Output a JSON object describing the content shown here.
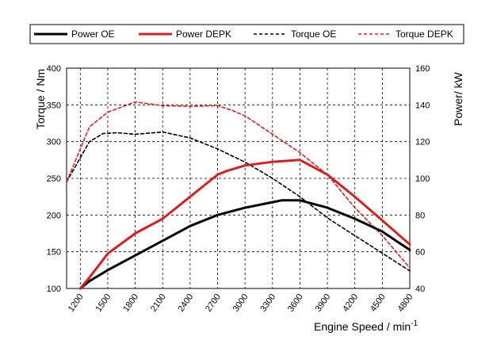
{
  "chart_data": {
    "type": "line",
    "x": [
      1200,
      1500,
      1800,
      2100,
      2400,
      2700,
      3000,
      3300,
      3600,
      3900,
      4200,
      4500,
      4800
    ],
    "xlabel": "Engine Speed / min",
    "xlabel_sup": "-1",
    "ylabel": "Torque / Nm",
    "y2label": "Power/ kW",
    "ylim": [
      100,
      400
    ],
    "y2lim": [
      40,
      160
    ],
    "xlim": [
      1050,
      4800
    ],
    "yticks": [
      100,
      150,
      200,
      250,
      300,
      350,
      400
    ],
    "y2ticks": [
      40,
      60,
      80,
      100,
      120,
      140,
      160
    ],
    "xtick_labels": [
      "1200",
      "1500",
      "1800",
      "2100",
      "2400",
      "2700",
      "3000",
      "3300",
      "3600",
      "3900",
      "4200",
      "4500",
      "4800"
    ],
    "grid": true,
    "legend_position": "top",
    "series": [
      {
        "name": "Power OE",
        "axis": "right",
        "color": "#000000",
        "style": "solid",
        "points": [
          [
            1200,
            40
          ],
          [
            1300,
            44
          ],
          [
            1500,
            50
          ],
          [
            1800,
            58
          ],
          [
            2100,
            66
          ],
          [
            2400,
            74
          ],
          [
            2700,
            80
          ],
          [
            3000,
            84
          ],
          [
            3300,
            87
          ],
          [
            3400,
            88
          ],
          [
            3600,
            88
          ],
          [
            3900,
            84
          ],
          [
            4200,
            78
          ],
          [
            4500,
            71
          ],
          [
            4800,
            61
          ]
        ]
      },
      {
        "name": "Power DEPK",
        "axis": "right",
        "color": "#d62020",
        "style": "solid",
        "points": [
          [
            1200,
            40
          ],
          [
            1300,
            46
          ],
          [
            1500,
            59
          ],
          [
            1800,
            70
          ],
          [
            2100,
            78
          ],
          [
            2400,
            90
          ],
          [
            2700,
            102
          ],
          [
            2800,
            104
          ],
          [
            3000,
            107
          ],
          [
            3300,
            109
          ],
          [
            3600,
            110
          ],
          [
            3900,
            102
          ],
          [
            4200,
            90
          ],
          [
            4500,
            77
          ],
          [
            4800,
            64
          ]
        ]
      },
      {
        "name": "Torque OE",
        "axis": "left",
        "color": "#000000",
        "style": "dashed",
        "points": [
          [
            1050,
            245
          ],
          [
            1300,
            300
          ],
          [
            1450,
            311
          ],
          [
            1600,
            312
          ],
          [
            1800,
            310
          ],
          [
            2100,
            313
          ],
          [
            2400,
            305
          ],
          [
            2700,
            290
          ],
          [
            3000,
            272
          ],
          [
            3300,
            250
          ],
          [
            3600,
            225
          ],
          [
            3900,
            196
          ],
          [
            4200,
            172
          ],
          [
            4500,
            148
          ],
          [
            4800,
            124
          ]
        ]
      },
      {
        "name": "Torque DEPK",
        "axis": "left",
        "color": "#d62020",
        "style": "dashed",
        "points": [
          [
            1050,
            245
          ],
          [
            1300,
            320
          ],
          [
            1500,
            340
          ],
          [
            1800,
            354
          ],
          [
            2100,
            349
          ],
          [
            2400,
            348
          ],
          [
            2700,
            349
          ],
          [
            2850,
            343
          ],
          [
            3000,
            335
          ],
          [
            3300,
            310
          ],
          [
            3600,
            285
          ],
          [
            3900,
            255
          ],
          [
            4200,
            210
          ],
          [
            4500,
            172
          ],
          [
            4800,
            128
          ]
        ]
      }
    ]
  }
}
